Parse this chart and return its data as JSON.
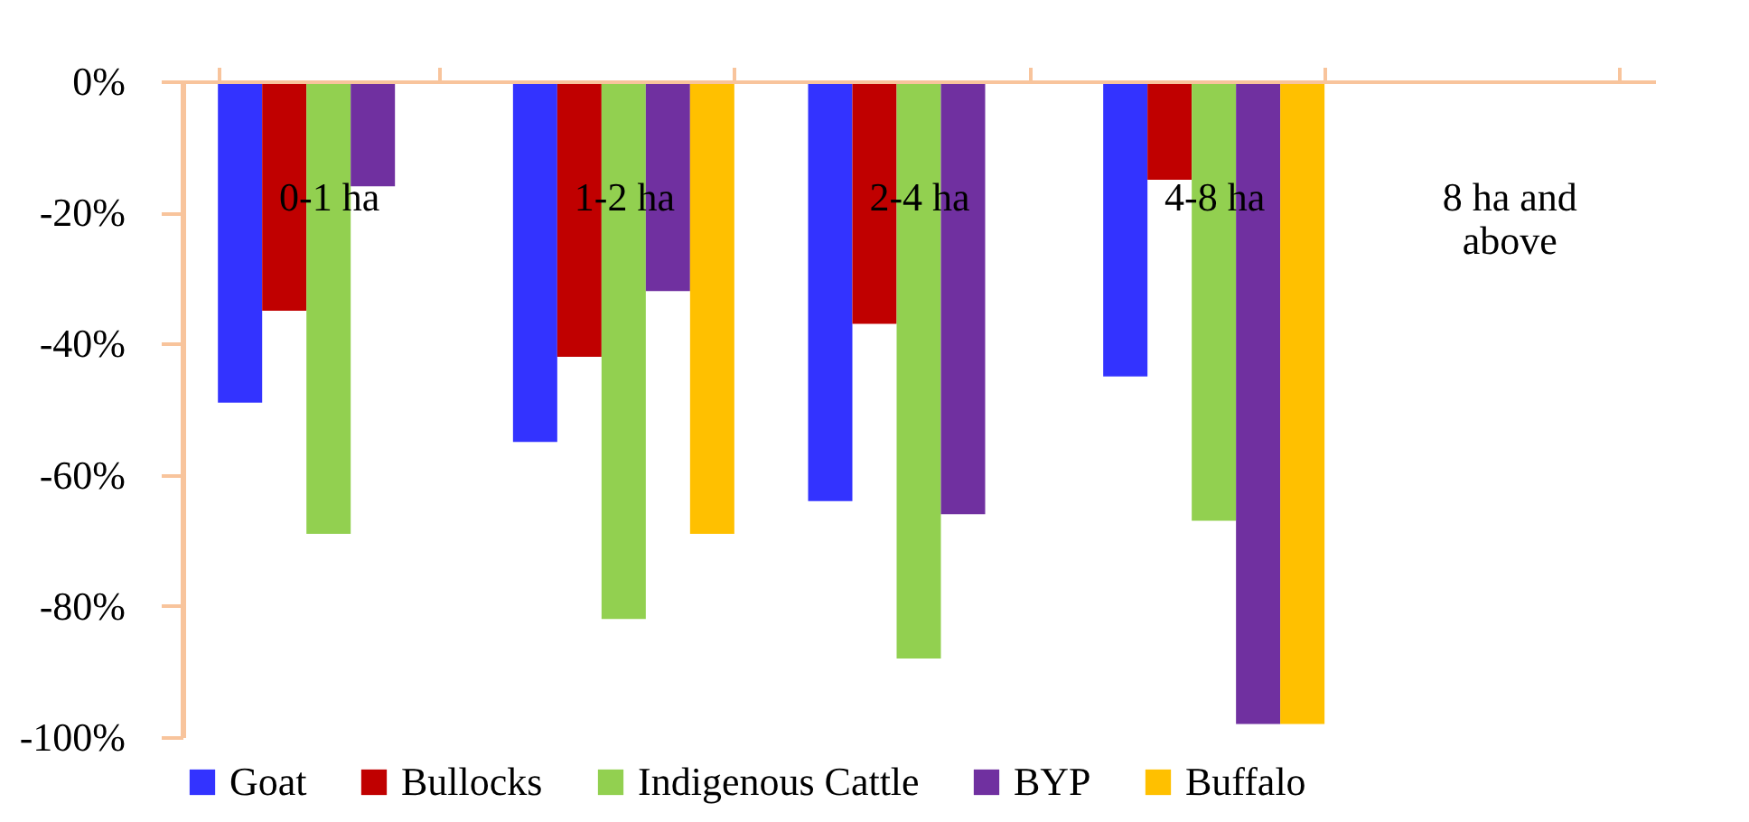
{
  "chart_data": {
    "type": "bar",
    "categories": [
      "0-1 ha",
      "1-2 ha",
      "2-4 ha",
      "4-8 ha",
      "8 ha and above"
    ],
    "series": [
      {
        "name": "Goat",
        "color": "#3333ff",
        "values": [
          -49,
          -55,
          -64,
          -45,
          0
        ]
      },
      {
        "name": "Bullocks",
        "color": "#c00000",
        "values": [
          -35,
          -42,
          -37,
          -15,
          0
        ]
      },
      {
        "name": "Indigenous Cattle",
        "color": "#92d050",
        "values": [
          -69,
          -82,
          -88,
          -67,
          0
        ]
      },
      {
        "name": "BYP",
        "color": "#7030a0",
        "values": [
          -16,
          -32,
          -66,
          -98,
          0
        ]
      },
      {
        "name": "Buffalo",
        "color": "#ffc000",
        "values": [
          0,
          -69,
          0,
          -98,
          0
        ]
      }
    ],
    "ylim": [
      -100,
      0
    ],
    "yticks": [
      {
        "value": 0,
        "label": "0%"
      },
      {
        "value": -20,
        "label": "-20%"
      },
      {
        "value": -40,
        "label": "-40%"
      },
      {
        "value": -60,
        "label": "-60%"
      },
      {
        "value": -80,
        "label": "-80%"
      },
      {
        "value": -100,
        "label": "-100%"
      }
    ],
    "legend": "bottom"
  }
}
